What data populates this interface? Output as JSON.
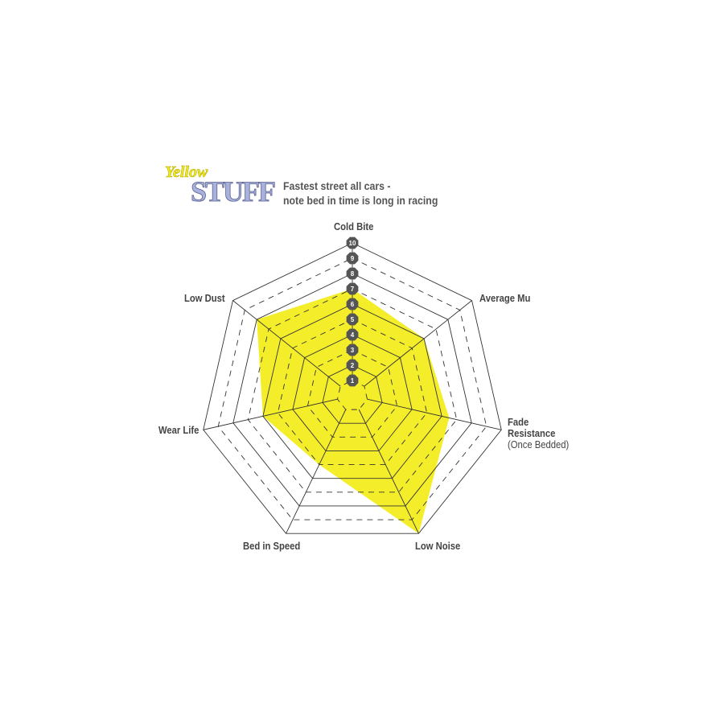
{
  "logo": {
    "line1": "Yellow",
    "line2": "STUFF"
  },
  "title": {
    "line1": "Fastest street all cars -",
    "line2": "note bed in time is long in racing"
  },
  "colors": {
    "fill": "#f4ee2a",
    "grid": "#333333",
    "badge": "#555555"
  },
  "chart_data": {
    "type": "radar",
    "axes": [
      "Cold Bite",
      "Average Mu",
      "Fade Resistance",
      "Low Noise",
      "Bed in Speed",
      "Wear Life",
      "Low Dust"
    ],
    "axis_sublabels": {
      "Fade Resistance": "(Once Bedded)"
    },
    "values": [
      7,
      6,
      6.5,
      10,
      5,
      6,
      8
    ],
    "scale_ticks": [
      1,
      2,
      3,
      4,
      5,
      6,
      7,
      8,
      9,
      10
    ],
    "range": [
      0,
      10
    ]
  }
}
